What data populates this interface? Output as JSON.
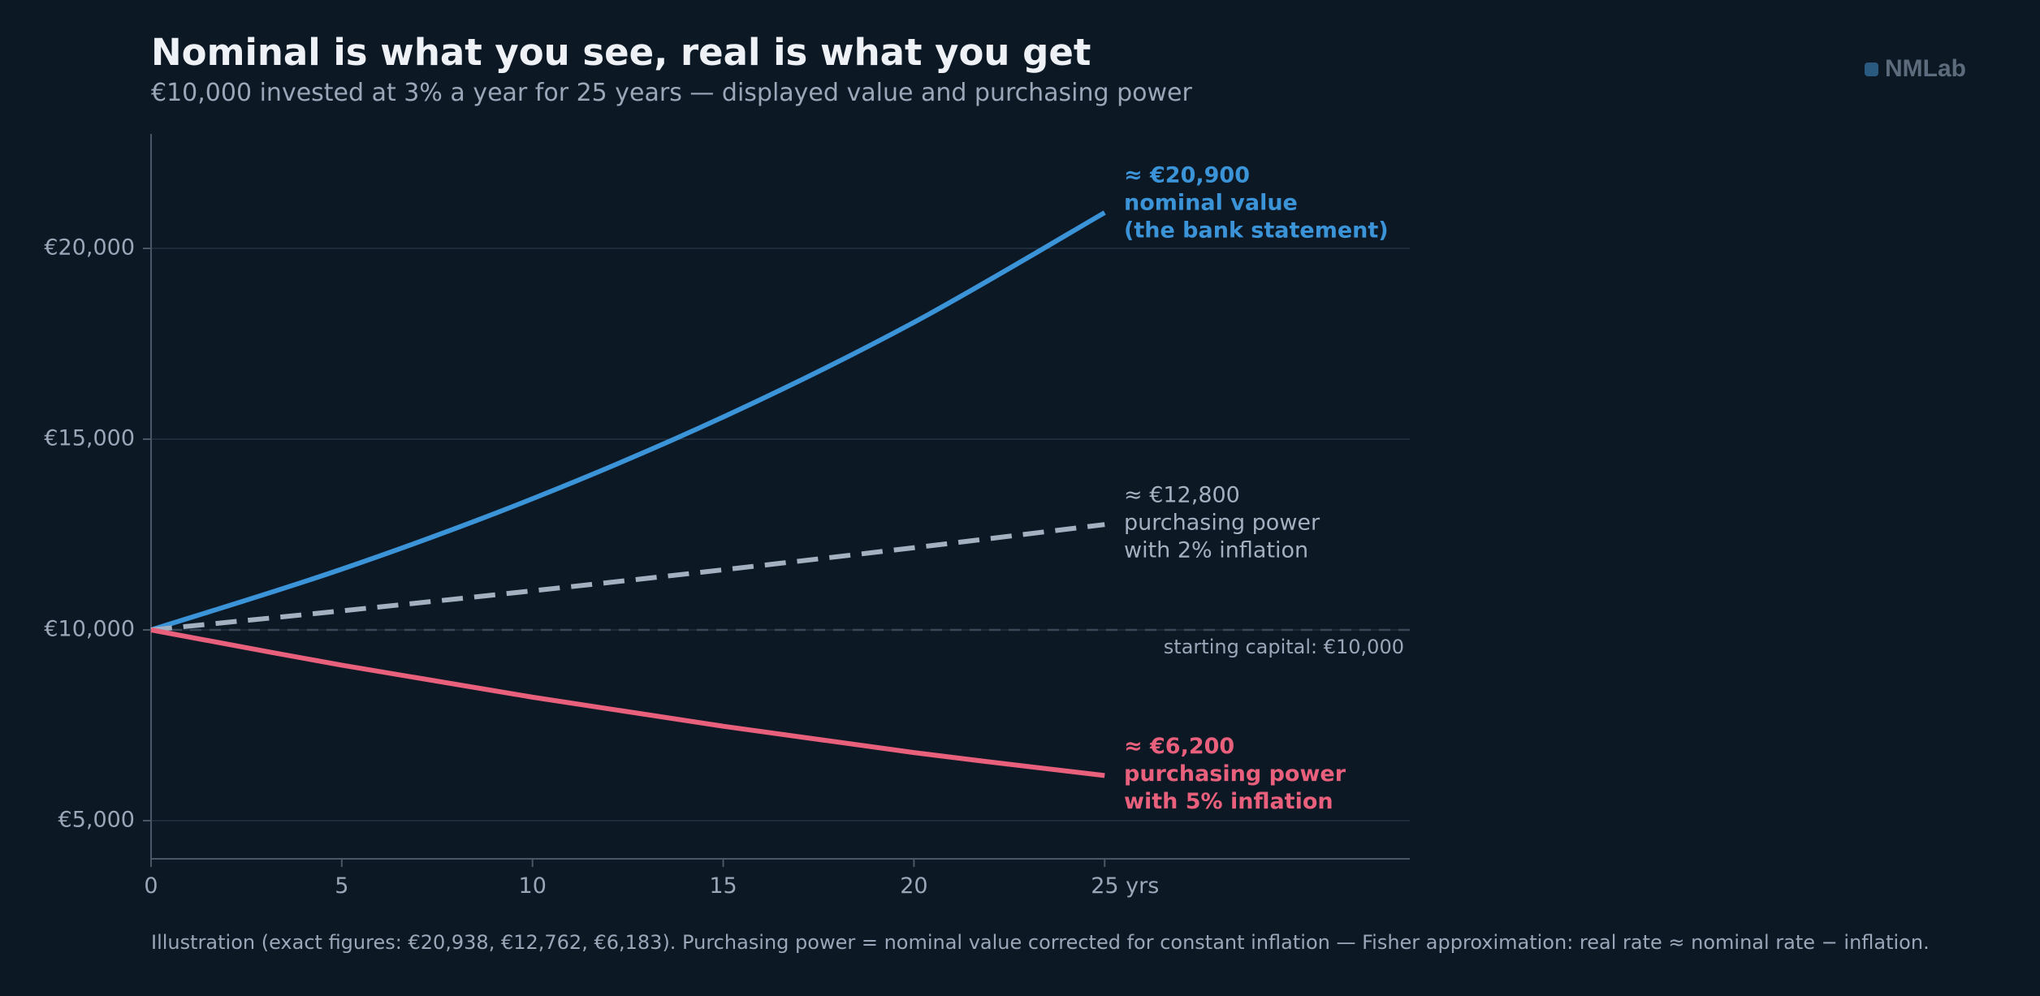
{
  "header": {
    "title": "Nominal is what you see, real is what you get",
    "subtitle": "€10,000 invested at 3% a year for 25 years — displayed value and purchasing power"
  },
  "brand": {
    "name": "NMLab"
  },
  "footnote": "Illustration (exact figures: €20,938, €12,762, €6,183). Purchasing power = nominal value corrected for constant inflation — Fisher approximation: real rate ≈ nominal rate − inflation.",
  "colors": {
    "background": "#0d1825",
    "nominal": "#3b93d8",
    "inflation_2": "#a3b0c0",
    "inflation_5": "#e8607c",
    "grid": "#1e2b3b",
    "axis": "#4a5666",
    "tick_text": "#9aa7b8"
  },
  "chart_data": {
    "type": "line",
    "xlim": [
      0,
      33
    ],
    "ylim": [
      4000,
      23000
    ],
    "x_ticks": [
      0,
      5,
      10,
      15,
      20,
      25
    ],
    "x_tick_labels": [
      "0",
      "5",
      "10",
      "15",
      "20",
      "25 yrs"
    ],
    "y_ticks": [
      5000,
      10000,
      15000,
      20000
    ],
    "y_tick_labels": [
      "€5,000",
      "€10,000",
      "€15,000",
      "€20,000"
    ],
    "grid": "horizontal",
    "series": [
      {
        "key": "nominal",
        "x": [
          0,
          5,
          10,
          15,
          20,
          25
        ],
        "values": [
          10000,
          11593,
          13439,
          15580,
          18061,
          20938
        ],
        "style": "solid",
        "label_lines": [
          "≈ €20,900",
          "nominal value",
          "(the bank statement)"
        ],
        "label_bold": true
      },
      {
        "key": "inflation_2",
        "x": [
          0,
          5,
          10,
          15,
          20,
          25
        ],
        "values": [
          10000,
          10500,
          11025,
          11576,
          12155,
          12762
        ],
        "style": "dashed",
        "label_lines": [
          "≈ €12,800",
          "purchasing power",
          "with 2% inflation"
        ],
        "label_bold": false
      },
      {
        "key": "inflation_5",
        "x": [
          0,
          5,
          10,
          15,
          20,
          25
        ],
        "values": [
          10000,
          9076,
          8237,
          7475,
          6784,
          6183
        ],
        "style": "solid",
        "label_lines": [
          "≈ €6,200",
          "purchasing power",
          "with 5% inflation"
        ],
        "label_bold": true
      }
    ],
    "reference_line": {
      "value": 10000,
      "label": "starting capital: €10,000"
    }
  }
}
